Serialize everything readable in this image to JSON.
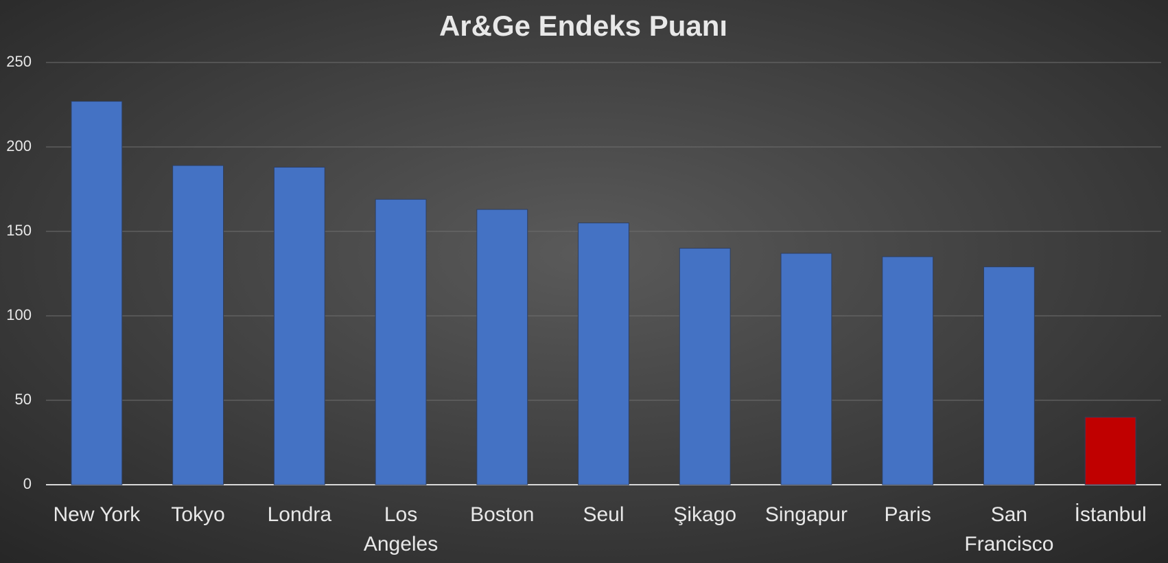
{
  "chart_data": {
    "type": "bar",
    "title": "Ar&Ge Endeks Puanı",
    "categories": [
      "New York",
      "Tokyo",
      "Londra",
      "Los Angeles",
      "Boston",
      "Seul",
      "Şikago",
      "Singapur",
      "Paris",
      "San Francisco",
      "İstanbul"
    ],
    "values": [
      227,
      189,
      188,
      169,
      163,
      155,
      140,
      137,
      135,
      129,
      40
    ],
    "colors": [
      "#4472c4",
      "#4472c4",
      "#4472c4",
      "#4472c4",
      "#4472c4",
      "#4472c4",
      "#4472c4",
      "#4472c4",
      "#4472c4",
      "#4472c4",
      "#c00000"
    ],
    "ylim": [
      0,
      250
    ],
    "yticks": [
      0,
      50,
      100,
      150,
      200,
      250
    ],
    "grid": true
  }
}
